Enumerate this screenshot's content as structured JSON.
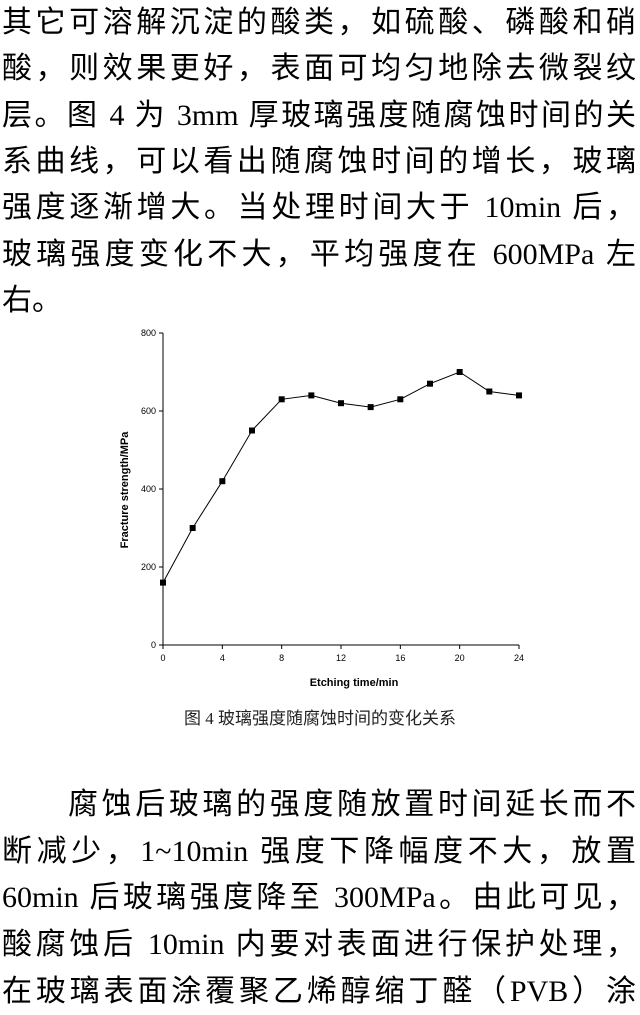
{
  "paragraphs": [
    {
      "lines": [
        "其它可溶解沉淀的酸类，如硫酸、磷酸和硝",
        "酸，则效果更好，表面可均匀地除去微裂纹",
        "层。图 4 为 3mm 厚玻璃强度随腐蚀时间的关",
        "系曲线，可以看出随腐蚀时间的增长，玻璃",
        "强度逐渐增大。当处理时间大于 10min 后，",
        "玻璃强度变化不大，平均强度在 600MPa 左",
        "右。"
      ]
    },
    {
      "lines": [
        "腐蚀后玻璃的强度随放置时间延长而不",
        "断减少，1~10min 强度下降幅度不大，放置",
        "60min 后玻璃强度降至 300MPa。由此可见，",
        "酸腐蚀后 10min 内要对表面进行保护处理，",
        "在玻璃表面涂覆聚乙烯醇缩丁醛（PVB）涂"
      ]
    }
  ],
  "chart_data": {
    "type": "line",
    "x_label": "Etching time/min",
    "y_label": "Fracture strength/MPa",
    "x": [
      0,
      2,
      4,
      6,
      8,
      10,
      12,
      14,
      16,
      18,
      20,
      22,
      24
    ],
    "series": [
      {
        "name": "Fracture strength",
        "color": "#000000",
        "values": [
          160,
          300,
          420,
          550,
          630,
          640,
          620,
          610,
          630,
          670,
          700,
          650,
          640
        ]
      }
    ],
    "xlim": [
      0,
      24
    ],
    "xticks": [
      0,
      4,
      8,
      12,
      16,
      20,
      24
    ],
    "ylim": [
      0,
      800
    ],
    "yticks": [
      0,
      200,
      400,
      600,
      800
    ]
  },
  "caption": "图 4   玻璃强度随腐蚀时间的变化关系"
}
